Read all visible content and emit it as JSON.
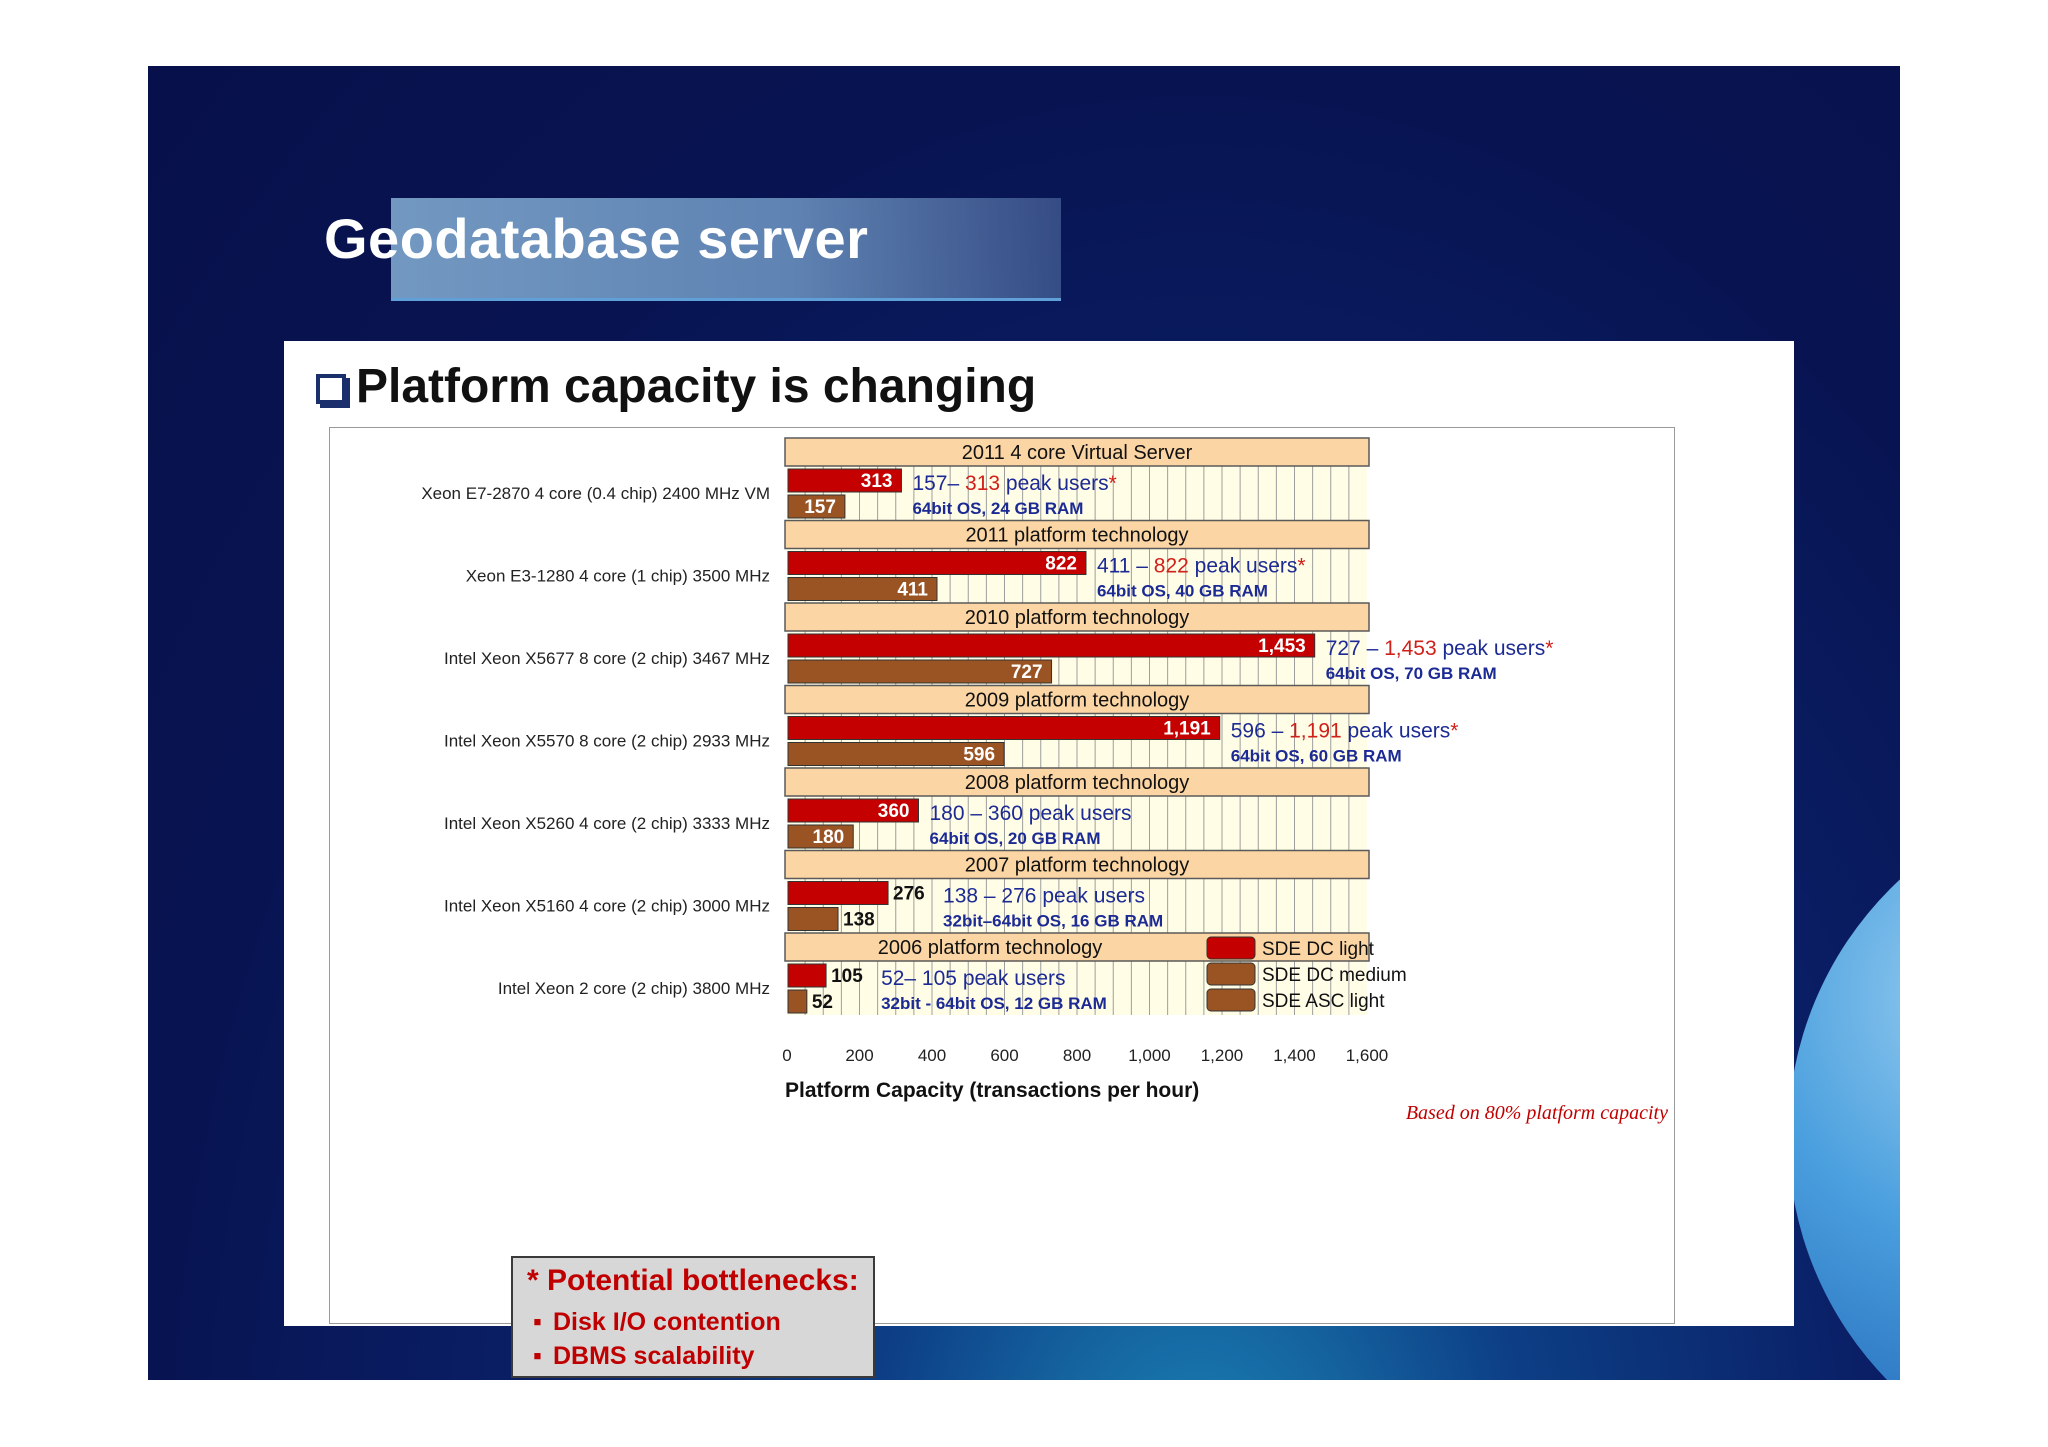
{
  "slide": {
    "title": "Geodatabase server"
  },
  "panel": {
    "heading": "Platform capacity is changing"
  },
  "chart_data": {
    "type": "bar",
    "orientation": "horizontal",
    "xlabel": "Platform Capacity (transactions per hour)",
    "xlim": [
      0,
      1600
    ],
    "xticks": [
      "0",
      "200",
      "400",
      "600",
      "800",
      "1,000",
      "1,200",
      "1,400",
      "1,600"
    ],
    "grid": true,
    "legend": {
      "placement": "bottom-right",
      "entries": [
        {
          "label": "SDE DC light",
          "color": "#c40000"
        },
        {
          "label": "SDE DC medium",
          "color": "#9a5424"
        },
        {
          "label": "SDE ASC light",
          "color": "#9a5424"
        }
      ]
    },
    "colors": {
      "light": "#c40000",
      "medium": "#9a5424",
      "header": "#fbd5a3",
      "plot_bg": "#fffde6",
      "users": "#1c2a94",
      "highlight": "#d0201a"
    },
    "groups": [
      {
        "header": "2011 4 core Virtual Server",
        "cpu": "Xeon E7-2870  4 core (0.4 chip) 2400 MHz VM",
        "light": 313,
        "medium": 157,
        "light_label": "313",
        "medium_label": "157",
        "users_low": "157– ",
        "users_high": "313",
        "users_suffix": " peak users",
        "asterisk": "*",
        "os": "64bit OS, 24 GB RAM"
      },
      {
        "header": "2011 platform technology",
        "cpu": "Xeon E3-1280  4 core (1 chip) 3500 MHz",
        "light": 822,
        "medium": 411,
        "light_label": "822",
        "medium_label": "411",
        "users_low": "411 – ",
        "users_high": "822",
        "users_suffix": " peak users",
        "asterisk": "*",
        "os": "64bit OS, 40 GB RAM"
      },
      {
        "header": "2010 platform technology",
        "cpu": "Intel Xeon X5677  8 core (2 chip) 3467 MHz",
        "light": 1453,
        "medium": 727,
        "light_label": "1,453",
        "medium_label": "727",
        "users_low": "727 – ",
        "users_high": "1,453",
        "users_suffix": " peak users",
        "asterisk": "*",
        "os": "64bit OS, 70 GB RAM"
      },
      {
        "header": "2009 platform technology",
        "cpu": "Intel Xeon X5570  8 core (2 chip) 2933 MHz",
        "light": 1191,
        "medium": 596,
        "light_label": "1,191",
        "medium_label": "596",
        "users_low": "596 – ",
        "users_high": "1,191",
        "users_suffix": " peak users",
        "asterisk": "*",
        "os": "64bit OS, 60 GB RAM"
      },
      {
        "header": "2008 platform technology",
        "cpu": "Intel Xeon X5260  4 core (2 chip) 3333 MHz",
        "light": 360,
        "medium": 180,
        "light_label": "360",
        "medium_label": "180",
        "users_low": "180 – 360",
        "users_high": "",
        "users_suffix": " peak users",
        "asterisk": "",
        "os": "64bit OS, 20 GB RAM"
      },
      {
        "header": "2007 platform technology",
        "cpu": "Intel Xeon X5160  4 core (2 chip) 3000 MHz",
        "light": 276,
        "medium": 138,
        "light_label": "276",
        "medium_label": "138",
        "users_low": "138 – 276",
        "users_high": "",
        "users_suffix": " peak users",
        "asterisk": "",
        "os": "32bit–64bit OS, 16 GB RAM"
      },
      {
        "header": "2006 platform technology",
        "cpu": "Intel Xeon  2 core (2 chip) 3800 MHz",
        "light": 105,
        "medium": 52,
        "light_label": "105",
        "medium_label": "52",
        "users_low": "52– 105",
        "users_high": "",
        "users_suffix": " peak users",
        "asterisk": "",
        "os": "32bit - 64bit OS, 12 GB RAM"
      }
    ],
    "annotation": "Based on 80% platform capacity"
  },
  "bottlenecks": {
    "title": "* Potential bottlenecks:",
    "items": [
      "Disk I/O contention",
      "DBMS scalability"
    ]
  }
}
